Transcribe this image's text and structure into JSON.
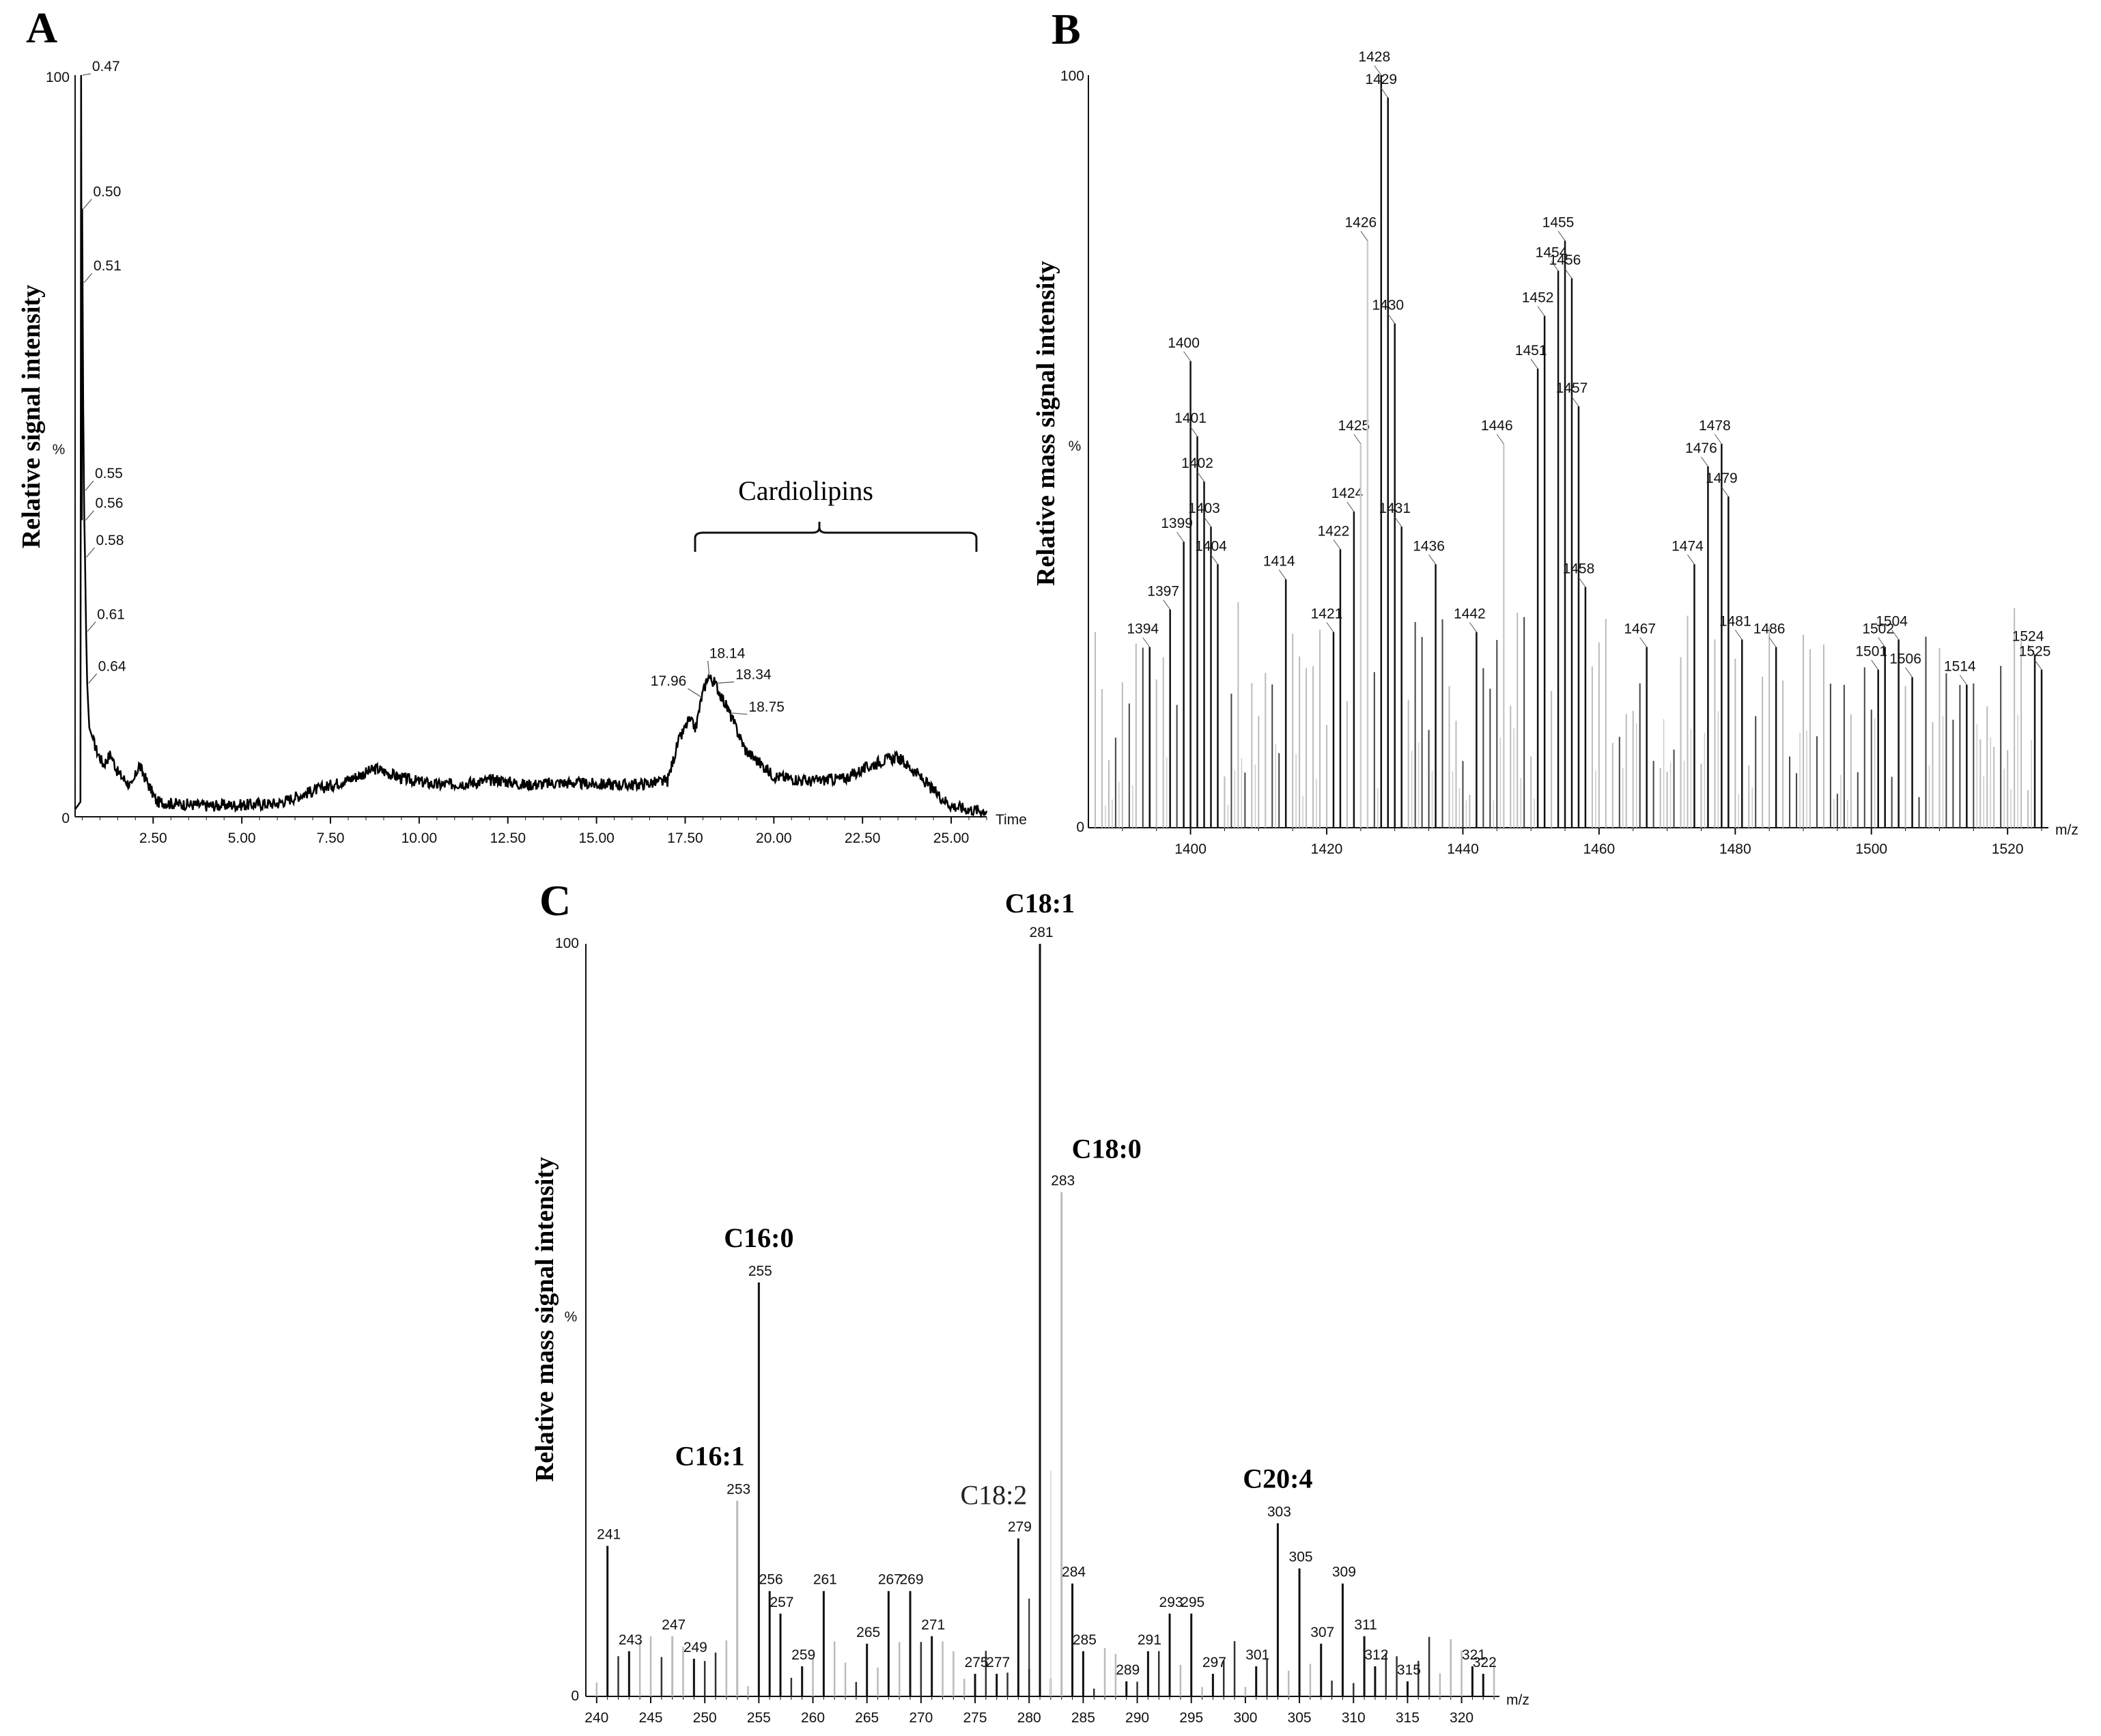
{
  "chart_data": [
    {
      "panel": "A",
      "type": "line",
      "ylabel": "Relative signal intensity",
      "xlabel": "Time",
      "y_top_label": "100",
      "y_mid_label": "%",
      "y_bottom_label": "0",
      "xlim": [
        0.3,
        26.0
      ],
      "ylim": [
        0,
        100
      ],
      "x_ticks": [
        "2.50",
        "5.00",
        "7.50",
        "10.00",
        "12.50",
        "15.00",
        "17.50",
        "20.00",
        "22.50",
        "25.00"
      ],
      "trace": [
        [
          0.3,
          1
        ],
        [
          0.45,
          2
        ],
        [
          0.47,
          100
        ],
        [
          0.49,
          40
        ],
        [
          0.5,
          82
        ],
        [
          0.51,
          72
        ],
        [
          0.53,
          55
        ],
        [
          0.55,
          44
        ],
        [
          0.56,
          40
        ],
        [
          0.58,
          35
        ],
        [
          0.61,
          25
        ],
        [
          0.64,
          18
        ],
        [
          0.7,
          12
        ],
        [
          0.9,
          9
        ],
        [
          1.1,
          7
        ],
        [
          1.3,
          8.5
        ],
        [
          1.5,
          6
        ],
        [
          1.7,
          5
        ],
        [
          1.9,
          4
        ],
        [
          2.1,
          7
        ],
        [
          2.3,
          5
        ],
        [
          2.6,
          2
        ],
        [
          3.0,
          1.8
        ],
        [
          4.0,
          1.5
        ],
        [
          5.0,
          1.6
        ],
        [
          6.0,
          1.8
        ],
        [
          7.0,
          3.5
        ],
        [
          8.0,
          5
        ],
        [
          8.8,
          6.5
        ],
        [
          9.5,
          5.2
        ],
        [
          10.5,
          4.3
        ],
        [
          11.5,
          4.6
        ],
        [
          12.2,
          5
        ],
        [
          13.0,
          4.3
        ],
        [
          14.0,
          4.6
        ],
        [
          15.0,
          4.4
        ],
        [
          16.0,
          4.3
        ],
        [
          17.0,
          4.8
        ],
        [
          17.3,
          10
        ],
        [
          17.6,
          13
        ],
        [
          17.8,
          12
        ],
        [
          17.96,
          16
        ],
        [
          18.14,
          19
        ],
        [
          18.34,
          18
        ],
        [
          18.55,
          16
        ],
        [
          18.75,
          14
        ],
        [
          19.2,
          9
        ],
        [
          20.0,
          5.5
        ],
        [
          21.0,
          4.8
        ],
        [
          22.0,
          5.2
        ],
        [
          23.0,
          7.5
        ],
        [
          23.5,
          8
        ],
        [
          24.0,
          6
        ],
        [
          24.5,
          3.5
        ],
        [
          25.0,
          1.5
        ],
        [
          25.5,
          1
        ],
        [
          26.0,
          0.8
        ]
      ],
      "peak_labels": [
        {
          "x": 0.47,
          "y": 100,
          "label": "0.47"
        },
        {
          "x": 0.5,
          "y": 82,
          "label": "0.50"
        },
        {
          "x": 0.51,
          "y": 72,
          "label": "0.51"
        },
        {
          "x": 0.55,
          "y": 44,
          "label": "0.55"
        },
        {
          "x": 0.56,
          "y": 40,
          "label": "0.56"
        },
        {
          "x": 0.58,
          "y": 35,
          "label": "0.58"
        },
        {
          "x": 0.61,
          "y": 25,
          "label": "0.61"
        },
        {
          "x": 0.64,
          "y": 18,
          "label": "0.64"
        },
        {
          "x": 17.96,
          "y": 16,
          "label": "17.96"
        },
        {
          "x": 18.14,
          "y": 19,
          "label": "18.14"
        },
        {
          "x": 18.34,
          "y": 18,
          "label": "18.34"
        },
        {
          "x": 18.75,
          "y": 14,
          "label": "18.75"
        }
      ],
      "annotation": {
        "text": "Cardiolipins",
        "x_start": 16.5,
        "x_end": 25.5
      }
    },
    {
      "panel": "B",
      "type": "bar",
      "ylabel": "Relative mass signal intensity",
      "xlabel": "m/z",
      "y_top_label": "100",
      "y_mid_label": "%",
      "y_bottom_label": "0",
      "xlim": [
        1385,
        1526
      ],
      "ylim": [
        0,
        100
      ],
      "x_ticks": [
        "1400",
        "1420",
        "1440",
        "1460",
        "1480",
        "1500",
        "1520"
      ],
      "labeled_peaks": [
        [
          1394,
          24
        ],
        [
          1397,
          29
        ],
        [
          1399,
          38
        ],
        [
          1400,
          62
        ],
        [
          1401,
          52
        ],
        [
          1402,
          46
        ],
        [
          1403,
          40
        ],
        [
          1404,
          35
        ],
        [
          1414,
          33
        ],
        [
          1421,
          26
        ],
        [
          1422,
          37
        ],
        [
          1424,
          42
        ],
        [
          1425,
          51
        ],
        [
          1426,
          78
        ],
        [
          1428,
          100
        ],
        [
          1429,
          97
        ],
        [
          1430,
          67
        ],
        [
          1431,
          40
        ],
        [
          1436,
          35
        ],
        [
          1442,
          26
        ],
        [
          1446,
          51
        ],
        [
          1451,
          61
        ],
        [
          1452,
          68
        ],
        [
          1454,
          74
        ],
        [
          1455,
          78
        ],
        [
          1456,
          73
        ],
        [
          1457,
          56
        ],
        [
          1458,
          32
        ],
        [
          1467,
          24
        ],
        [
          1474,
          35
        ],
        [
          1476,
          48
        ],
        [
          1478,
          51
        ],
        [
          1479,
          44
        ],
        [
          1481,
          25
        ],
        [
          1486,
          24
        ],
        [
          1501,
          21
        ],
        [
          1502,
          24
        ],
        [
          1504,
          25
        ],
        [
          1506,
          20
        ],
        [
          1514,
          19
        ],
        [
          1524,
          23
        ],
        [
          1525,
          21
        ]
      ]
    },
    {
      "panel": "C",
      "type": "bar",
      "ylabel": "Relative mass signal intensity",
      "xlabel": "m/z",
      "y_top_label": "100",
      "y_mid_label": "%",
      "y_bottom_label": "0",
      "xlim": [
        239,
        323.5
      ],
      "ylim": [
        0,
        100
      ],
      "x_ticks": [
        "240",
        "245",
        "250",
        "255",
        "260",
        "265",
        "270",
        "275",
        "280",
        "285",
        "290",
        "295",
        "300",
        "305",
        "310",
        "315",
        "320"
      ],
      "labeled_peaks": [
        [
          241,
          20
        ],
        [
          243,
          6
        ],
        [
          247,
          8
        ],
        [
          249,
          5
        ],
        [
          253,
          26
        ],
        [
          255,
          55
        ],
        [
          256,
          14
        ],
        [
          257,
          11
        ],
        [
          259,
          4
        ],
        [
          261,
          14
        ],
        [
          265,
          7
        ],
        [
          267,
          14
        ],
        [
          269,
          14
        ],
        [
          271,
          8
        ],
        [
          275,
          3
        ],
        [
          277,
          3
        ],
        [
          279,
          21
        ],
        [
          281,
          100
        ],
        [
          283,
          67
        ],
        [
          284,
          15
        ],
        [
          285,
          6
        ],
        [
          289,
          2
        ],
        [
          291,
          6
        ],
        [
          293,
          11
        ],
        [
          295,
          11
        ],
        [
          297,
          3
        ],
        [
          301,
          4
        ],
        [
          303,
          23
        ],
        [
          305,
          17
        ],
        [
          307,
          7
        ],
        [
          309,
          15
        ],
        [
          311,
          8
        ],
        [
          312,
          4
        ],
        [
          315,
          2
        ],
        [
          321,
          4
        ],
        [
          322,
          3
        ]
      ],
      "fatty_acid_labels": [
        {
          "mz": 253,
          "text": "C16:1"
        },
        {
          "mz": 255,
          "text": "C16:0"
        },
        {
          "mz": 279,
          "text": "C18:2"
        },
        {
          "mz": 281,
          "text": "C18:1"
        },
        {
          "mz": 283,
          "text": "C18:0"
        },
        {
          "mz": 303,
          "text": "C20:4"
        }
      ]
    }
  ]
}
